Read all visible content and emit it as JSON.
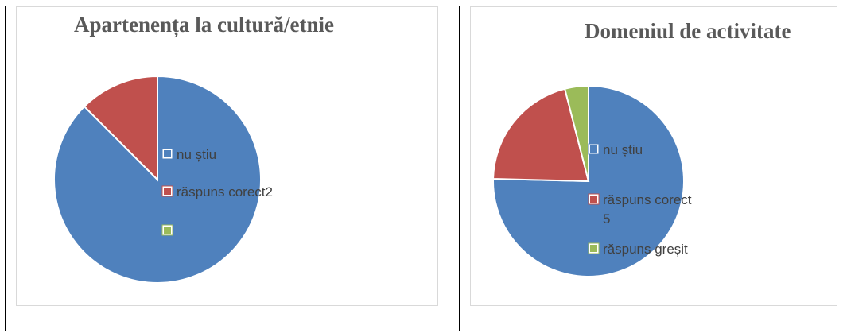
{
  "chart_data": [
    {
      "type": "pie",
      "title": "Apartenența la cultură/etnie",
      "series": [
        {
          "label": "",
          "value": 87.5,
          "color": "#4f81bd"
        },
        {
          "label": "răspuns corect2",
          "value": 12.5,
          "color": "#c0504d"
        },
        {
          "label": "",
          "value": 0,
          "color": "#9bbb59"
        }
      ],
      "legend": [
        {
          "text": "nu știu",
          "color": "#4f81bd"
        },
        {
          "text": "răspuns corect2",
          "color": "#c0504d"
        },
        {
          "text": "",
          "color": "#9bbb59"
        }
      ]
    },
    {
      "type": "pie",
      "title": "Domeniul de activitate",
      "series": [
        {
          "label": "",
          "value": 75.4,
          "color": "#4f81bd"
        },
        {
          "label": "răspuns corect 5",
          "value": 20.6,
          "color": "#c0504d"
        },
        {
          "label": "răspuns greșit",
          "value": 4.0,
          "color": "#9bbb59"
        }
      ],
      "legend": [
        {
          "text": "nu știu",
          "color": "#4f81bd"
        },
        {
          "text": "răspuns corect",
          "text2": "5",
          "color": "#c0504d"
        },
        {
          "text": "răspuns greșit",
          "color": "#9bbb59"
        }
      ]
    }
  ]
}
